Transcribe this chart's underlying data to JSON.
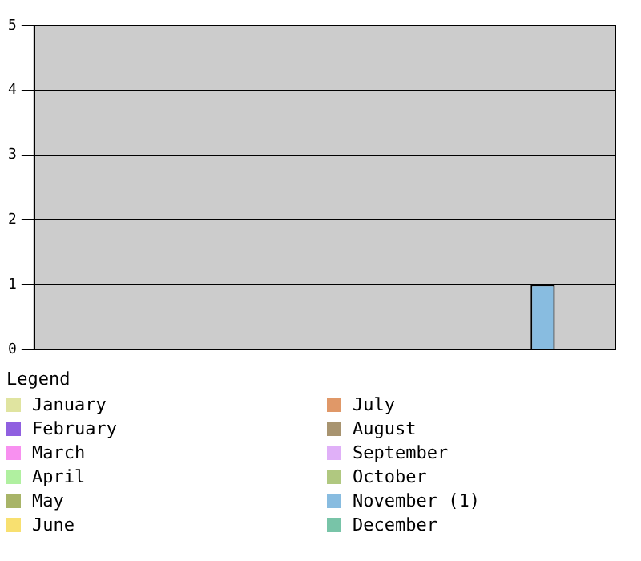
{
  "chart_data": {
    "type": "bar",
    "categories": [
      null
    ],
    "legend_title": "Legend",
    "legend": "bottom",
    "grid": "y",
    "ylim": [
      0,
      5
    ],
    "yticks": [
      0,
      1,
      2,
      3,
      4,
      5
    ],
    "series": [
      {
        "name": "January",
        "color": "#e0e4a0",
        "values": [
          0
        ]
      },
      {
        "name": "February",
        "color": "#9060e0",
        "values": [
          0
        ]
      },
      {
        "name": "March",
        "color": "#f890f0",
        "values": [
          0
        ]
      },
      {
        "name": "April",
        "color": "#b0f0a0",
        "values": [
          0
        ]
      },
      {
        "name": "May",
        "color": "#a8b468",
        "values": [
          0
        ]
      },
      {
        "name": "June",
        "color": "#f8e070",
        "values": [
          0
        ]
      },
      {
        "name": "July",
        "color": "#e09868",
        "values": [
          0
        ]
      },
      {
        "name": "August",
        "color": "#a89470",
        "values": [
          0
        ]
      },
      {
        "name": "September",
        "color": "#e0b0f8",
        "values": [
          0
        ]
      },
      {
        "name": "October",
        "color": "#b0c880",
        "values": [
          0
        ]
      },
      {
        "name": "November (1)",
        "color": "#88bce0",
        "values": [
          1
        ]
      },
      {
        "name": "December",
        "color": "#78c4a8",
        "values": [
          0
        ]
      }
    ]
  }
}
